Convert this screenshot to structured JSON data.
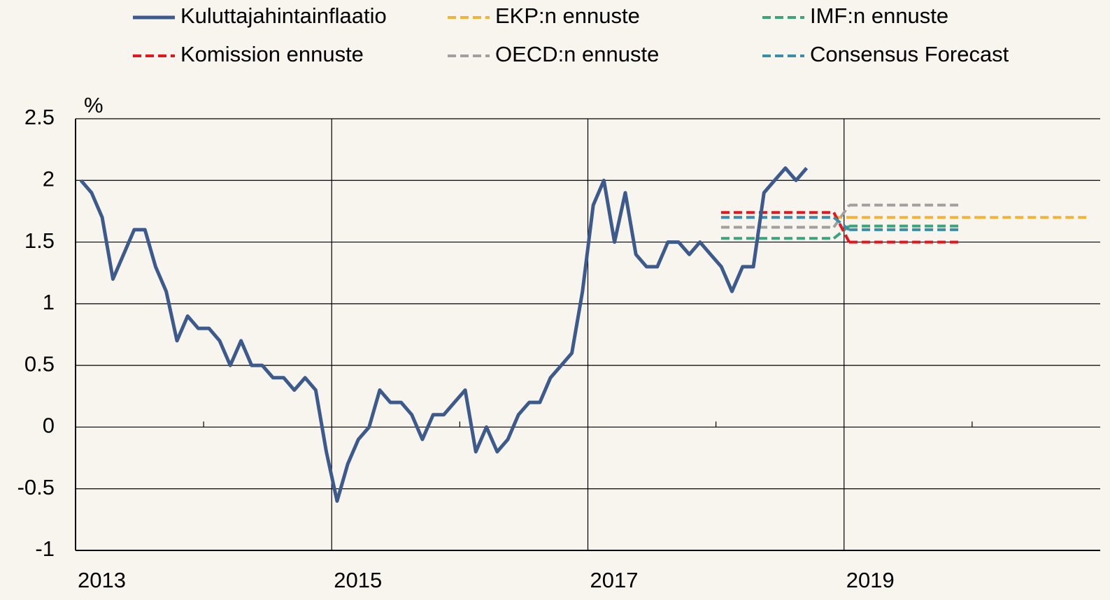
{
  "chart_data": {
    "type": "line",
    "ylabel": "%",
    "xlim": [
      2013,
      2021
    ],
    "xticks": [
      2013,
      2015,
      2017,
      2019
    ],
    "xminorticks": [
      2014,
      2016,
      2018,
      2020
    ],
    "ylim": [
      -1,
      2.5
    ],
    "yticks": [
      -1,
      -0.5,
      0,
      0.5,
      1,
      1.5,
      2,
      2.5
    ],
    "grid": true,
    "legend": "top",
    "series": [
      {
        "name": "Kuluttajahintainflaatio",
        "color": "#3d5a8c",
        "style": "solid",
        "x": [
          2013.042,
          2013.125,
          2013.208,
          2013.292,
          2013.375,
          2013.458,
          2013.542,
          2013.625,
          2013.708,
          2013.792,
          2013.875,
          2013.958,
          2014.042,
          2014.125,
          2014.208,
          2014.292,
          2014.375,
          2014.458,
          2014.542,
          2014.625,
          2014.708,
          2014.792,
          2014.875,
          2014.958,
          2015.042,
          2015.125,
          2015.208,
          2015.292,
          2015.375,
          2015.458,
          2015.542,
          2015.625,
          2015.708,
          2015.792,
          2015.875,
          2015.958,
          2016.042,
          2016.125,
          2016.208,
          2016.292,
          2016.375,
          2016.458,
          2016.542,
          2016.625,
          2016.708,
          2016.792,
          2016.875,
          2016.958,
          2017.042,
          2017.125,
          2017.208,
          2017.292,
          2017.375,
          2017.458,
          2017.542,
          2017.625,
          2017.708,
          2017.792,
          2017.875,
          2017.958,
          2018.042,
          2018.125,
          2018.208,
          2018.292,
          2018.375,
          2018.458,
          2018.542,
          2018.625,
          2018.708
        ],
        "values": [
          2.0,
          1.9,
          1.7,
          1.2,
          1.4,
          1.6,
          1.6,
          1.3,
          1.1,
          0.7,
          0.9,
          0.8,
          0.8,
          0.7,
          0.5,
          0.7,
          0.5,
          0.5,
          0.4,
          0.4,
          0.3,
          0.4,
          0.3,
          -0.2,
          -0.6,
          -0.3,
          -0.1,
          0.0,
          0.3,
          0.2,
          0.2,
          0.1,
          -0.1,
          0.1,
          0.1,
          0.2,
          0.3,
          -0.2,
          0.0,
          -0.2,
          -0.1,
          0.1,
          0.2,
          0.2,
          0.4,
          0.5,
          0.6,
          1.1,
          1.8,
          2.0,
          1.5,
          1.9,
          1.4,
          1.3,
          1.3,
          1.5,
          1.5,
          1.4,
          1.5,
          1.4,
          1.3,
          1.1,
          1.3,
          1.3,
          1.9,
          2.0,
          2.1,
          2.0,
          2.1
        ]
      },
      {
        "name": "EKP:n ennuste",
        "color": "#f5b335",
        "style": "dashed",
        "x": [
          2018,
          2019,
          2020
        ],
        "values": [
          1.7,
          1.7,
          1.7
        ]
      },
      {
        "name": "IMF:n ennuste",
        "color": "#3aa57a",
        "style": "dashed",
        "x": [
          2018,
          2019
        ],
        "values": [
          1.53,
          1.63
        ]
      },
      {
        "name": "Komission ennuste",
        "color": "#e8141c",
        "style": "dashed",
        "x": [
          2018,
          2019
        ],
        "values": [
          1.74,
          1.5
        ]
      },
      {
        "name": "OECD:n ennuste",
        "color": "#a0a0a0",
        "style": "dashed",
        "x": [
          2018,
          2019
        ],
        "values": [
          1.62,
          1.8
        ]
      },
      {
        "name": "Consensus Forecast",
        "color": "#3a8eaa",
        "style": "dashed",
        "x": [
          2018,
          2019
        ],
        "values": [
          1.7,
          1.6
        ]
      }
    ]
  }
}
